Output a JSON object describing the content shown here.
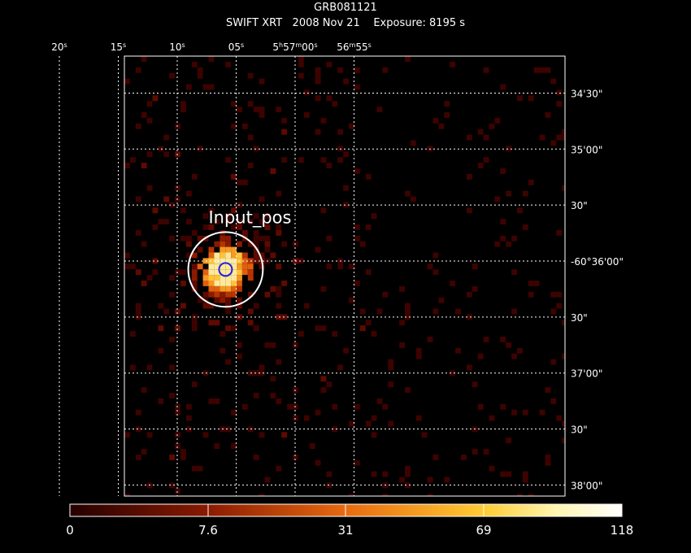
{
  "header": {
    "title": "GRB081121",
    "subtitle": "SWIFT XRT   2008 Nov 21    Exposure: 8195 s"
  },
  "chart_data": {
    "type": "heatmap",
    "title": "GRB081121",
    "subtitle": "SWIFT XRT   2008 Nov 21    Exposure: 8195 s",
    "ra_ticks": [
      "20s",
      "15s",
      "10s",
      "05s",
      "5h57m00s",
      "56m55s"
    ],
    "ra_tick_values_s": [
      20,
      15,
      10,
      5,
      0,
      -5
    ],
    "dec_ticks": [
      "34'30\"",
      "35'00\"",
      "30\"",
      "-60°36'00\"",
      "30\"",
      "37'00\"",
      "30\"",
      "38'00\""
    ],
    "dec_tick_offsets_arcsec": [
      -90,
      -60,
      -30,
      0,
      30,
      60,
      90,
      120
    ],
    "grid": true,
    "source_label": "Input_pos",
    "source_position": {
      "ra_offset_s": 5.9,
      "dec_offset_arcsec": 4.5
    },
    "source_circle_radius_arcsec": 20,
    "inner_circle_radius_arcsec": 3.5,
    "colorbar": {
      "tick_labels": [
        "0",
        "7.6",
        "31",
        "69",
        "118"
      ],
      "tick_values": [
        0,
        7.6,
        31,
        69,
        118
      ],
      "min": 0,
      "max": 118,
      "scale": "nonlinear",
      "colormap": "heat"
    },
    "colors": {
      "background": "#000000",
      "frame": "#ffffff",
      "grid": "#ffffff",
      "source_circle": "#ffffff",
      "inner_circle": "#2222dd"
    }
  }
}
